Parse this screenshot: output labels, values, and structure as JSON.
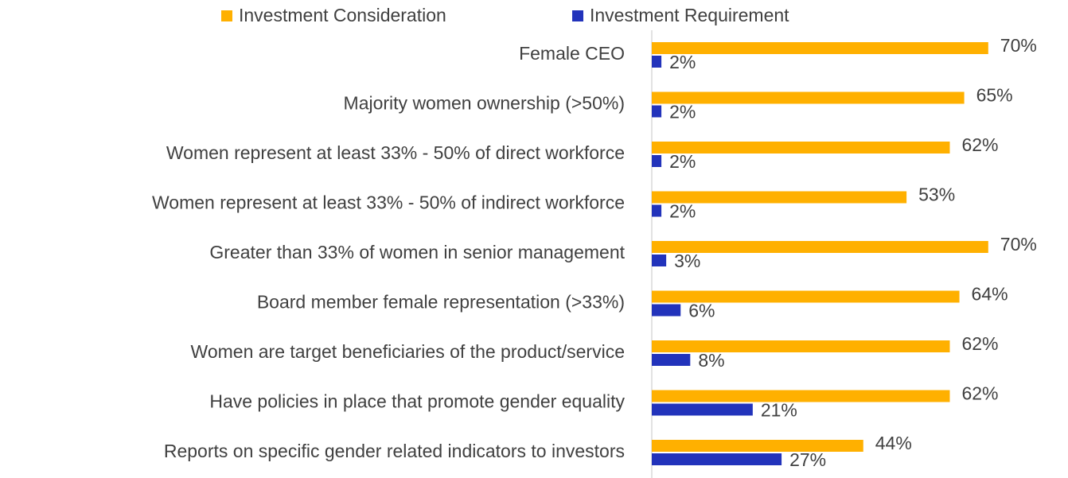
{
  "chart_data": {
    "type": "bar",
    "orientation": "horizontal",
    "categories": [
      "Female CEO",
      "Majority women ownership (>50%)",
      "Women represent at least 33% - 50% of direct workforce",
      "Women represent at least 33% - 50% of indirect workforce",
      "Greater than 33% of women in senior management",
      "Board member female representation (>33%)",
      "Women are target beneficiaries of the product/service",
      "Have policies in place that promote gender equality",
      "Reports on specific gender related indicators to investors"
    ],
    "series": [
      {
        "name": "Investment Consideration",
        "color": "#ffb000",
        "values": [
          70,
          65,
          62,
          53,
          70,
          64,
          62,
          62,
          44
        ],
        "value_labels": [
          "70%",
          "65%",
          "62%",
          "53%",
          "70%",
          "64%",
          "62%",
          "62%",
          "44%"
        ]
      },
      {
        "name": "Investment Requirement",
        "color": "#2233bb",
        "values": [
          2,
          2,
          2,
          2,
          3,
          6,
          8,
          21,
          27
        ],
        "value_labels": [
          "2%",
          "2%",
          "2%",
          "2%",
          "3%",
          "6%",
          "8%",
          "21%",
          "27%"
        ]
      }
    ],
    "legend": "top"
  }
}
